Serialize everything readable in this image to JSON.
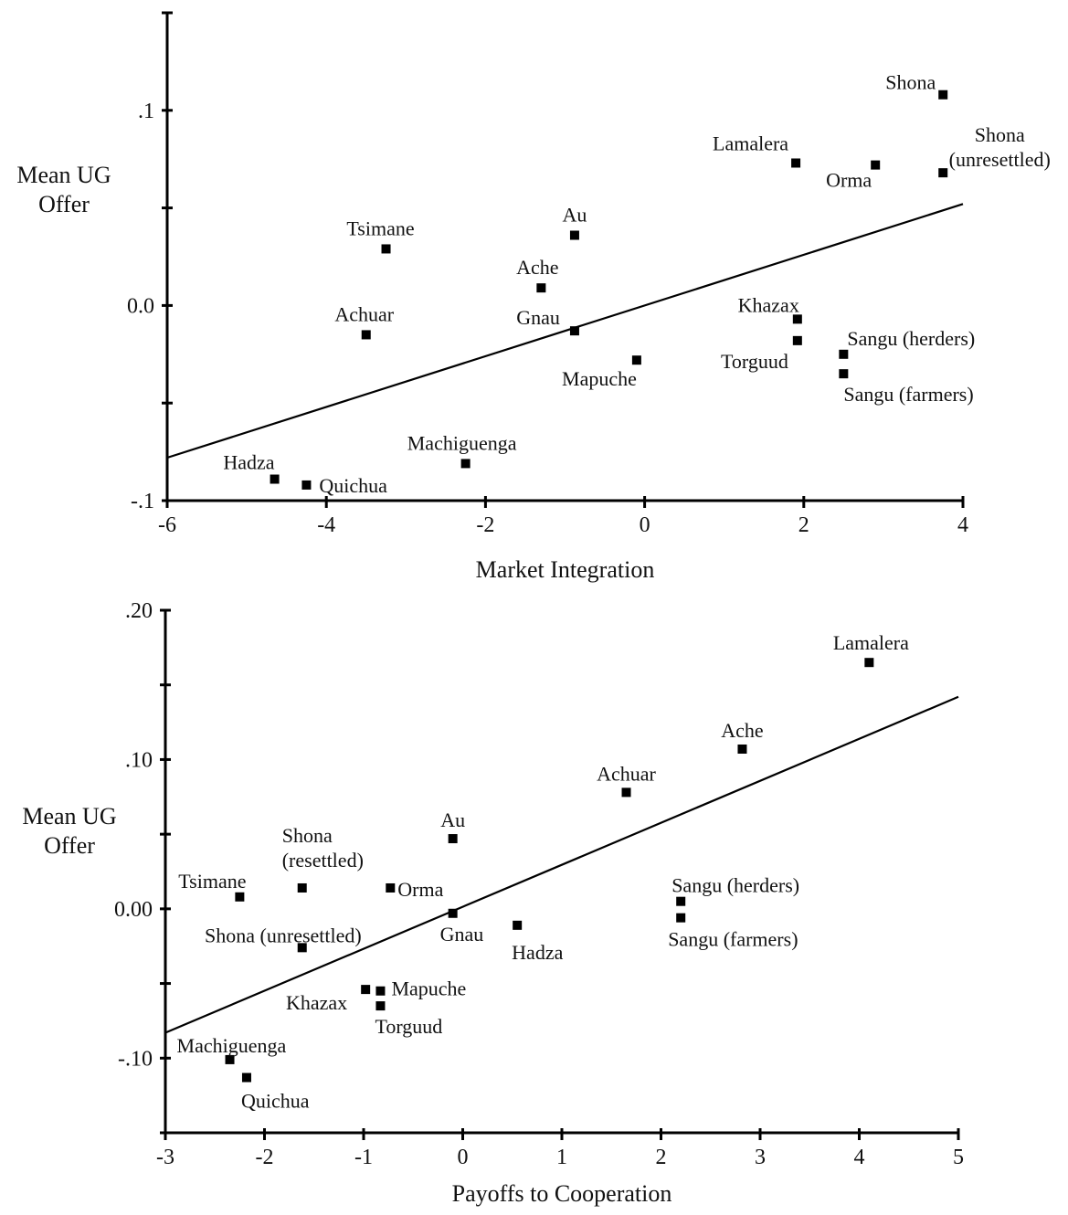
{
  "chart_data": [
    {
      "type": "scatter",
      "ylabel": [
        "Mean UG",
        "Offer"
      ],
      "xlabel": "Market Integration",
      "xlim": [
        -6,
        4
      ],
      "ylim": [
        -0.1,
        0.15
      ],
      "x_ticks": [
        {
          "value": -6,
          "label": "-6"
        },
        {
          "value": -4,
          "label": "-4"
        },
        {
          "value": -2,
          "label": "-2"
        },
        {
          "value": 0,
          "label": "0"
        },
        {
          "value": 2,
          "label": "2"
        },
        {
          "value": 4,
          "label": "4"
        }
      ],
      "y_ticks": [
        {
          "value": -0.1,
          "label": "-.1"
        },
        {
          "value": -0.05,
          "label": ""
        },
        {
          "value": 0.0,
          "label": "0.0"
        },
        {
          "value": 0.05,
          "label": ""
        },
        {
          "value": 0.1,
          "label": ".1"
        },
        {
          "value": 0.15,
          "label": ""
        }
      ],
      "fit_line": {
        "x": [
          -6,
          4
        ],
        "y": [
          -0.078,
          0.052
        ]
      },
      "points": [
        {
          "label": [
            "Shona"
          ],
          "x": 3.75,
          "y": 0.108,
          "anchor": "end",
          "dx": -8,
          "dy": -6
        },
        {
          "label": [
            "Shona",
            "(unresettled)"
          ],
          "x": 3.75,
          "y": 0.068,
          "anchor": "middle",
          "dx": 62,
          "dy": -34
        },
        {
          "label": [
            "Lamalera"
          ],
          "x": 1.9,
          "y": 0.073,
          "anchor": "end",
          "dx": -8,
          "dy": -14
        },
        {
          "label": [
            "Orma"
          ],
          "x": 2.9,
          "y": 0.072,
          "anchor": "end",
          "dx": -4,
          "dy": 24
        },
        {
          "label": [
            "Tsimane"
          ],
          "x": -3.25,
          "y": 0.029,
          "anchor": "middle",
          "dx": -6,
          "dy": -15
        },
        {
          "label": [
            "Au"
          ],
          "x": -0.88,
          "y": 0.036,
          "anchor": "middle",
          "dx": 0,
          "dy": -15
        },
        {
          "label": [
            "Ache"
          ],
          "x": -1.3,
          "y": 0.009,
          "anchor": "middle",
          "dx": -4,
          "dy": -15
        },
        {
          "label": [
            "Achuar"
          ],
          "x": -3.5,
          "y": -0.015,
          "anchor": "middle",
          "dx": -2,
          "dy": -15
        },
        {
          "label": [
            "Gnau"
          ],
          "x": -0.88,
          "y": -0.013,
          "anchor": "end",
          "dx": -16,
          "dy": -7
        },
        {
          "label": [
            "Khazax"
          ],
          "x": 1.92,
          "y": -0.007,
          "anchor": "end",
          "dx": 2,
          "dy": -8
        },
        {
          "label": [
            "Torguud"
          ],
          "x": 1.92,
          "y": -0.018,
          "anchor": "end",
          "dx": -10,
          "dy": 30
        },
        {
          "label": [
            "Mapuche"
          ],
          "x": -0.1,
          "y": -0.028,
          "anchor": "end",
          "dx": 0,
          "dy": 28
        },
        {
          "label": [
            "Sangu (herders)"
          ],
          "x": 2.5,
          "y": -0.025,
          "anchor": "start",
          "dx": 4,
          "dy": -10
        },
        {
          "label": [
            "Sangu (farmers)"
          ],
          "x": 2.5,
          "y": -0.035,
          "anchor": "start",
          "dx": 0,
          "dy": 30
        },
        {
          "label": [
            "Machiguenga"
          ],
          "x": -2.25,
          "y": -0.081,
          "anchor": "middle",
          "dx": -4,
          "dy": -15
        },
        {
          "label": [
            "Hadza"
          ],
          "x": -4.65,
          "y": -0.089,
          "anchor": "end",
          "dx": 0,
          "dy": -11
        },
        {
          "label": [
            "Quichua"
          ],
          "x": -4.25,
          "y": -0.092,
          "anchor": "start",
          "dx": 14,
          "dy": 8
        }
      ]
    },
    {
      "type": "scatter",
      "ylabel": [
        "Mean UG",
        "Offer"
      ],
      "xlabel": "Payoffs to Cooperation",
      "xlim": [
        -3,
        5
      ],
      "ylim": [
        -0.15,
        0.2
      ],
      "x_ticks": [
        {
          "value": -3,
          "label": "-3"
        },
        {
          "value": -2,
          "label": "-2"
        },
        {
          "value": -1,
          "label": "-1"
        },
        {
          "value": 0,
          "label": "0"
        },
        {
          "value": 1,
          "label": "1"
        },
        {
          "value": 2,
          "label": "2"
        },
        {
          "value": 3,
          "label": "3"
        },
        {
          "value": 4,
          "label": "4"
        },
        {
          "value": 5,
          "label": "5"
        }
      ],
      "y_ticks": [
        {
          "value": -0.15,
          "label": ""
        },
        {
          "value": -0.1,
          "label": "-.10"
        },
        {
          "value": -0.05,
          "label": ""
        },
        {
          "value": 0.0,
          "label": "0.00"
        },
        {
          "value": 0.05,
          "label": ""
        },
        {
          "value": 0.1,
          "label": ".10"
        },
        {
          "value": 0.15,
          "label": ""
        },
        {
          "value": 0.2,
          "label": ".20"
        }
      ],
      "fit_line": {
        "x": [
          -3,
          5
        ],
        "y": [
          -0.083,
          0.142
        ]
      },
      "points": [
        {
          "label": [
            "Lamalera"
          ],
          "x": 4.1,
          "y": 0.165,
          "anchor": "middle",
          "dx": 2,
          "dy": -14
        },
        {
          "label": [
            "Ache"
          ],
          "x": 2.82,
          "y": 0.107,
          "anchor": "middle",
          "dx": 0,
          "dy": -13
        },
        {
          "label": [
            "Achuar"
          ],
          "x": 1.65,
          "y": 0.078,
          "anchor": "middle",
          "dx": 0,
          "dy": -13
        },
        {
          "label": [
            "Au"
          ],
          "x": -0.1,
          "y": 0.047,
          "anchor": "middle",
          "dx": 0,
          "dy": -13
        },
        {
          "label": [
            "Shona",
            "(resettled)"
          ],
          "x": -1.62,
          "y": 0.014,
          "anchor": "start",
          "dx": -22,
          "dy": -50
        },
        {
          "label": [
            "Tsimane"
          ],
          "x": -2.25,
          "y": 0.008,
          "anchor": "middle",
          "dx": -30,
          "dy": -10
        },
        {
          "label": [
            "Orma"
          ],
          "x": -0.73,
          "y": 0.014,
          "anchor": "start",
          "dx": 8,
          "dy": 9
        },
        {
          "label": [
            "Gnau"
          ],
          "x": -0.1,
          "y": -0.003,
          "anchor": "start",
          "dx": -14,
          "dy": 30
        },
        {
          "label": [
            "Hadza"
          ],
          "x": 0.55,
          "y": -0.011,
          "anchor": "start",
          "dx": -6,
          "dy": 37
        },
        {
          "label": [
            "Sangu (herders)"
          ],
          "x": 2.2,
          "y": 0.005,
          "anchor": "start",
          "dx": -10,
          "dy": -10
        },
        {
          "label": [
            "Sangu (farmers)"
          ],
          "x": 2.2,
          "y": -0.006,
          "anchor": "start",
          "dx": -14,
          "dy": 31
        },
        {
          "label": [
            "Shona (unresettled)"
          ],
          "x": -1.62,
          "y": -0.026,
          "anchor": "end",
          "dx": 65,
          "dy": -6
        },
        {
          "label": [
            "Khazax"
          ],
          "x": -0.98,
          "y": -0.054,
          "anchor": "end",
          "dx": -20,
          "dy": 22
        },
        {
          "label": [
            "Mapuche"
          ],
          "x": -0.83,
          "y": -0.055,
          "anchor": "start",
          "dx": 12,
          "dy": 5
        },
        {
          "label": [
            "Torguud"
          ],
          "x": -0.83,
          "y": -0.065,
          "anchor": "start",
          "dx": -6,
          "dy": 30
        },
        {
          "label": [
            "Machiguenga"
          ],
          "x": -2.35,
          "y": -0.101,
          "anchor": "start",
          "dx": -58,
          "dy": -8
        },
        {
          "label": [
            "Quichua"
          ],
          "x": -2.18,
          "y": -0.113,
          "anchor": "start",
          "dx": -6,
          "dy": 33
        }
      ]
    }
  ]
}
